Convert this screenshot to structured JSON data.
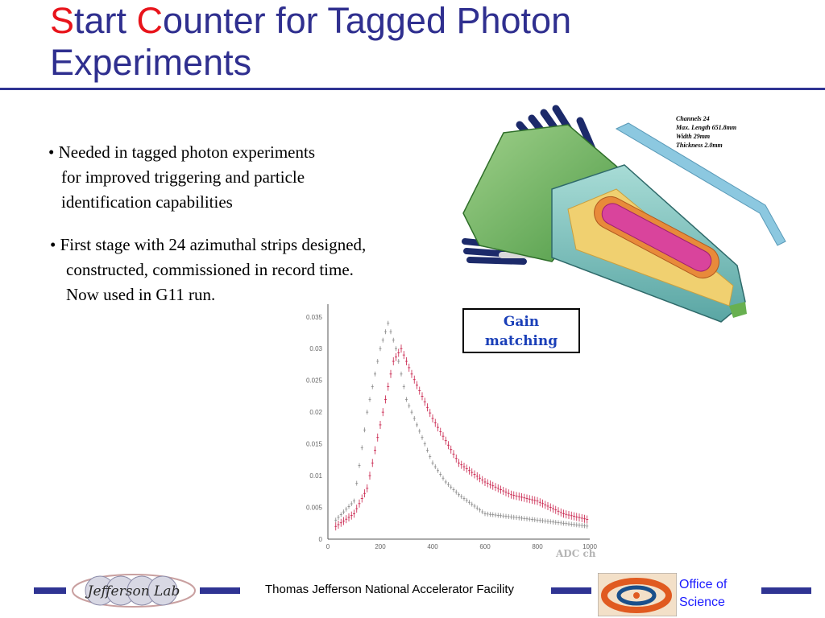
{
  "slide": {
    "title_s": "S",
    "title_part1": "tart ",
    "title_c": "C",
    "title_part2": "ounter for Tagged Photon",
    "title_line2": "Experiments",
    "bullets": [
      {
        "line1": "• Needed in tagged photon experiments",
        "line2": "for improved triggering and particle",
        "line3": "identification capabilities"
      },
      {
        "line1": "• First stage with 24 azimuthal strips designed,",
        "line2": "constructed, commissioned in record time.",
        "line3": "Now used in G11 run."
      }
    ]
  },
  "detector": {
    "notes": [
      "Channels 24",
      "Max. Length 651.8mm",
      "Width 29mm",
      "Thickness 2.0mm"
    ]
  },
  "plot": {
    "callout_line1": "Gain",
    "callout_line2": "matching",
    "xlabel": "ADC ch",
    "y_ticks": [
      "0.035",
      "0.03",
      "0.025",
      "0.02",
      "0.015",
      "0.01",
      "0.005",
      "0"
    ],
    "x_ticks": [
      "0",
      "200",
      "400",
      "600",
      "800",
      "1000"
    ]
  },
  "chart_data": {
    "type": "scatter",
    "title": "",
    "xlabel": "ADC ch",
    "ylabel": "",
    "xlim": [
      0,
      1000
    ],
    "ylim": [
      0,
      0.037
    ],
    "series": [
      {
        "values": [
          [
            30,
            0.003
          ],
          [
            100,
            0.006
          ],
          [
            150,
            0.02
          ],
          [
            200,
            0.03
          ],
          [
            230,
            0.034
          ],
          [
            260,
            0.03
          ],
          [
            300,
            0.022
          ],
          [
            350,
            0.017
          ],
          [
            400,
            0.012
          ],
          [
            450,
            0.009
          ],
          [
            500,
            0.007
          ],
          [
            600,
            0.004
          ],
          [
            800,
            0.003
          ],
          [
            1000,
            0.002
          ]
        ]
      },
      {
        "values": [
          [
            30,
            0.002
          ],
          [
            100,
            0.004
          ],
          [
            150,
            0.008
          ],
          [
            200,
            0.018
          ],
          [
            250,
            0.028
          ],
          [
            280,
            0.03
          ],
          [
            320,
            0.026
          ],
          [
            400,
            0.019
          ],
          [
            500,
            0.012
          ],
          [
            600,
            0.009
          ],
          [
            700,
            0.007
          ],
          [
            800,
            0.006
          ],
          [
            900,
            0.004
          ],
          [
            1000,
            0.003
          ]
        ]
      }
    ]
  },
  "footer": {
    "lab_name": "Jefferson Lab",
    "facility": "Thomas Jefferson National Accelerator Facility",
    "office_line1": "Office of",
    "office_line2": "Science"
  },
  "colors": {
    "title": "#2f2f8f",
    "accent_red": "#e8141b",
    "bar": "#2f3493",
    "office": "#1a1aff"
  }
}
